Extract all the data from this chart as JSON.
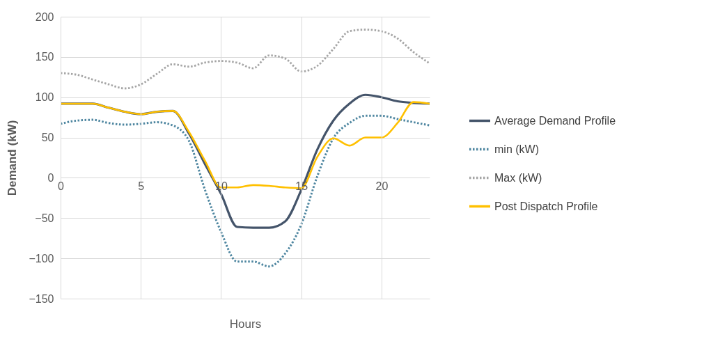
{
  "chart_data": {
    "type": "line",
    "xlabel": "Hours",
    "ylabel": "Demand (kW)",
    "x": [
      0,
      1,
      2,
      3,
      4,
      5,
      6,
      7,
      8,
      9,
      10,
      11,
      12,
      13,
      14,
      15,
      16,
      17,
      18,
      19,
      20,
      21,
      22,
      23
    ],
    "xlim": [
      0,
      23
    ],
    "xticks": [
      0,
      5,
      10,
      15,
      20
    ],
    "ylim": [
      -150,
      200
    ],
    "yticks": [
      -150,
      -100,
      -50,
      0,
      50,
      100,
      150,
      200
    ],
    "grid": true,
    "legend": "right",
    "marker": "none",
    "series": [
      {
        "name": "Average Demand Profile",
        "color": "#44546a",
        "line_style": "solid",
        "values": [
          92,
          92,
          92,
          87,
          82,
          79,
          82,
          83,
          55,
          17,
          -20,
          -61,
          -62,
          -62,
          -54,
          -15,
          35,
          71,
          92,
          103,
          100,
          95,
          93,
          92
        ]
      },
      {
        "name": "min (kW)",
        "color": "#4e86a0",
        "line_style": "dotted",
        "values": [
          67,
          71,
          72,
          68,
          66,
          67,
          69,
          65,
          46,
          -15,
          -67,
          -104,
          -104,
          -110,
          -94,
          -58,
          2,
          49,
          68,
          77,
          77,
          73,
          69,
          65
        ]
      },
      {
        "name": "Max (kW)",
        "color": "#a5a5a5",
        "line_style": "dotted",
        "values": [
          130,
          128,
          122,
          116,
          111,
          116,
          129,
          141,
          138,
          143,
          145,
          143,
          136,
          152,
          148,
          132,
          139,
          160,
          182,
          184,
          182,
          173,
          156,
          142
        ]
      },
      {
        "name": "Post Dispatch Profile",
        "color": "#ffc000",
        "line_style": "solid",
        "values": [
          92,
          92,
          92,
          87,
          82,
          79,
          82,
          83,
          57,
          21,
          -12,
          -12,
          -9,
          -10,
          -12,
          -13,
          26,
          49,
          40,
          50,
          50,
          68,
          94,
          92
        ]
      }
    ]
  }
}
